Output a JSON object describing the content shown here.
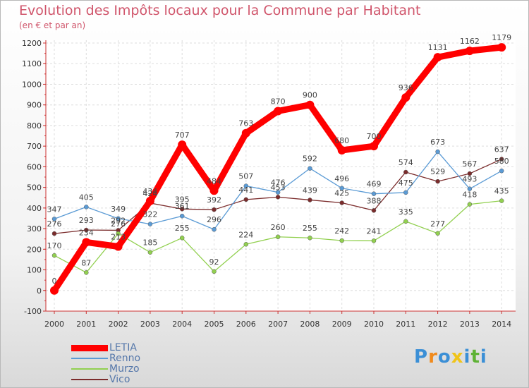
{
  "chart_data": {
    "type": "line",
    "title": "Evolution des Impôts locaux pour la Commune par Habitant",
    "subtitle": "(en € et par an)",
    "x": [
      "2000",
      "2001",
      "2002",
      "2003",
      "2004",
      "2005",
      "2006",
      "2007",
      "2008",
      "2009",
      "2010",
      "2011",
      "2012",
      "2013",
      "2014"
    ],
    "ylim": [
      -100,
      1200
    ],
    "yticks": [
      -100,
      0,
      100,
      200,
      300,
      400,
      500,
      600,
      700,
      800,
      900,
      1000,
      1100,
      1200
    ],
    "grid": true,
    "legend_position": "bottom-left",
    "series": [
      {
        "name": "LETIA",
        "color": "#ff0000",
        "values": [
          0,
          234,
          213,
          434,
          707,
          484,
          763,
          870,
          900,
          680,
          700,
          936,
          1131,
          1162,
          1179
        ]
      },
      {
        "name": "Renno",
        "color": "#5b9bd5",
        "values": [
          347,
          405,
          349,
          322,
          361,
          296,
          507,
          476,
          592,
          496,
          469,
          475,
          673,
          493,
          580
        ]
      },
      {
        "name": "Murzo",
        "color": "#92d050",
        "values": [
          170,
          87,
          276,
          185,
          255,
          92,
          224,
          260,
          255,
          242,
          241,
          335,
          277,
          418,
          435
        ]
      },
      {
        "name": "Vico",
        "color": "#7b2c2c",
        "values": [
          276,
          293,
          292,
          424,
          395,
          392,
          441,
          453,
          439,
          425,
          388,
          574,
          529,
          567,
          637
        ]
      }
    ]
  },
  "brand": {
    "letters": [
      "P",
      "r",
      "o",
      "x",
      "i",
      "t",
      "i"
    ],
    "colors": [
      "#3b8fd6",
      "#f08a1c",
      "#3b8fd6",
      "#f0c419",
      "#3b8fd6",
      "#5fb236",
      "#3b8fd6"
    ]
  }
}
